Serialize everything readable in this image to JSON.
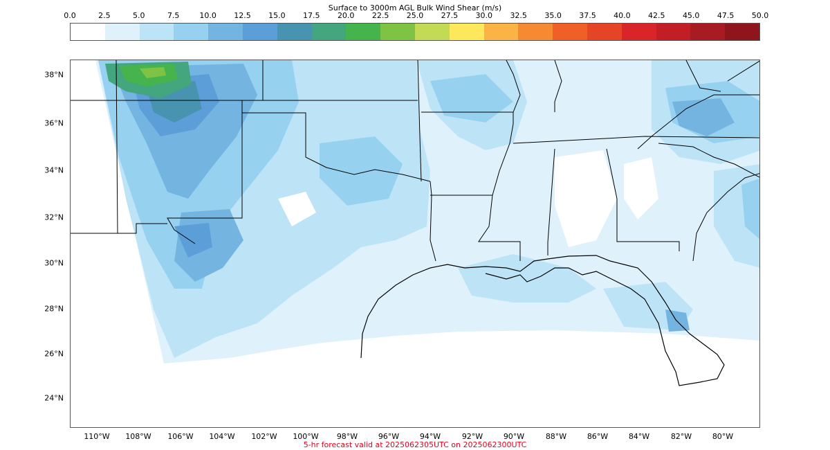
{
  "colorbar": {
    "title": "Surface to 3000m AGL Bulk Wind Shear (m/s)",
    "ticks": [
      "0.0",
      "2.5",
      "5.0",
      "7.5",
      "10.0",
      "12.5",
      "15.0",
      "17.5",
      "20.0",
      "22.5",
      "25.0",
      "27.5",
      "30.0",
      "32.5",
      "35.0",
      "37.5",
      "40.0",
      "42.5",
      "45.0",
      "47.5",
      "50.0"
    ],
    "colors": [
      "#ffffff",
      "#dff1fb",
      "#bde4f6",
      "#97d1f0",
      "#74b4e0",
      "#5b9ed8",
      "#4893af",
      "#44a67f",
      "#45b44c",
      "#7fc345",
      "#c3da55",
      "#fde75a",
      "#f9b445",
      "#f68a33",
      "#f15f29",
      "#e64427",
      "#d9252a",
      "#c11e25",
      "#a81b23",
      "#8e151b"
    ]
  },
  "map": {
    "lat_labels": [
      "38°N",
      "36°N",
      "34°N",
      "32°N",
      "30°N",
      "28°N",
      "26°N",
      "24°N"
    ],
    "lon_labels": [
      "110°W",
      "108°W",
      "106°W",
      "104°W",
      "102°W",
      "100°W",
      "98°W",
      "96°W",
      "94°W",
      "92°W",
      "90°W",
      "88°W",
      "86°W",
      "84°W",
      "82°W",
      "80°W"
    ]
  },
  "footer": "5-hr forecast valid at 2025062305UTC on 2025062300UTC"
}
